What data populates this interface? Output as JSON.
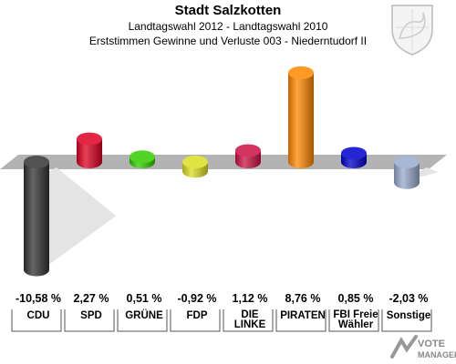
{
  "header": {
    "title": "Stadt Salzkotten",
    "subtitle1": "Landtagswahl 2012 - Landtagswahl 2010",
    "subtitle2": "Erststimmen Gewinne und Verluste 003 - Niederntudorf II"
  },
  "watermark": {
    "line1": "VOTE",
    "line2": "MANAGER"
  },
  "chart_data": {
    "type": "bar",
    "title": "Stadt Salzkotten",
    "unit": "%",
    "categories": [
      "CDU",
      "SPD",
      "GRÜNE",
      "FDP",
      "DIE LINKE",
      "PIRATEN",
      "FBI Freie Wähler",
      "Sonstige"
    ],
    "category_lines": [
      [
        "CDU"
      ],
      [
        "SPD"
      ],
      [
        "GRÜNE"
      ],
      [
        "FDP"
      ],
      [
        "DIE",
        "LINKE"
      ],
      [
        "PIRATEN"
      ],
      [
        "FBI Freie",
        "Wähler"
      ],
      [
        "Sonstige"
      ]
    ],
    "values": [
      -10.58,
      2.27,
      0.51,
      -0.92,
      1.12,
      8.76,
      0.85,
      -2.03
    ],
    "value_labels": [
      "-10,58 %",
      "2,27 %",
      "0,51 %",
      "-0,92 %",
      "1,12 %",
      "8,76 %",
      "0,85 %",
      "-2,03 %"
    ],
    "colors": [
      "#333333",
      "#dd0022",
      "#33cc00",
      "#dddd22",
      "#cc1144",
      "#ff8800",
      "#0000cc",
      "#99aacc"
    ],
    "grid": false,
    "legend": "none"
  }
}
